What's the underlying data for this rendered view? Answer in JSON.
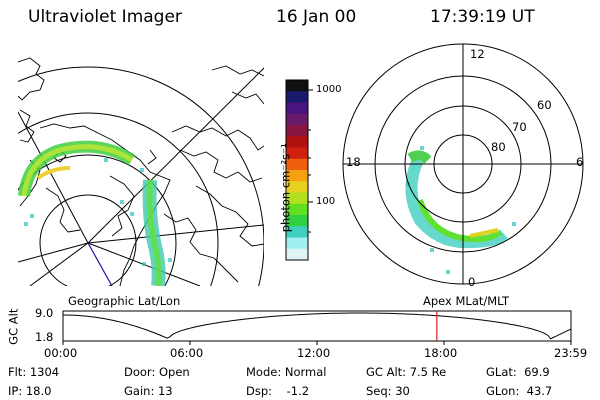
{
  "header": {
    "instrument": "Ultraviolet Imager",
    "date": "16 Jan 00",
    "time": "17:39:19 UT"
  },
  "colorbar": {
    "unit": "photon cm⁻²s⁻¹",
    "ticks": [
      "1000",
      "100"
    ],
    "colors": [
      "#101010",
      "#1a1a6a",
      "#4a1580",
      "#6a1a6a",
      "#8a1540",
      "#b01010",
      "#d02010",
      "#ee6010",
      "#f5a010",
      "#e8d020",
      "#b0e020",
      "#60e020",
      "#30d040",
      "#40d0c0",
      "#a0f0f0",
      "#e0f4f4"
    ]
  },
  "left_map": {
    "caption": "Geographic Lat/Lon"
  },
  "right_map": {
    "caption": "Apex MLat/MLT",
    "mlt_labels": {
      "top": "12",
      "bottom": "0",
      "left": "18",
      "right": "6"
    },
    "lat_labels": [
      "60",
      "70",
      "80"
    ]
  },
  "altitude_plot": {
    "ylabel": "GC Alt",
    "y_ticks": [
      "9.0",
      "1.8"
    ],
    "x_ticks": [
      "00:00",
      "06:00",
      "12:00",
      "18:00",
      "23:59"
    ],
    "current_marker": "17:39"
  },
  "info": {
    "row1": [
      {
        "label": "Flt:",
        "value": "1304"
      },
      {
        "label": "Door:",
        "value": "Open"
      },
      {
        "label": "Mode:",
        "value": "Normal"
      },
      {
        "label": "GC Alt:",
        "value": "7.5 Re"
      },
      {
        "label": "GLat:",
        "value": "69.9"
      }
    ],
    "row2": [
      {
        "label": "IP:",
        "value": "18.0"
      },
      {
        "label": "Gain:",
        "value": "13"
      },
      {
        "label": "Dsp:",
        "value": "-1.2"
      },
      {
        "label": "Seq:",
        "value": "30"
      },
      {
        "label": "GLon:",
        "value": "43.7"
      }
    ]
  },
  "colors": {
    "marker": "#cc2020",
    "trajectory": "#000000",
    "meridian": "#1a1aa0"
  }
}
